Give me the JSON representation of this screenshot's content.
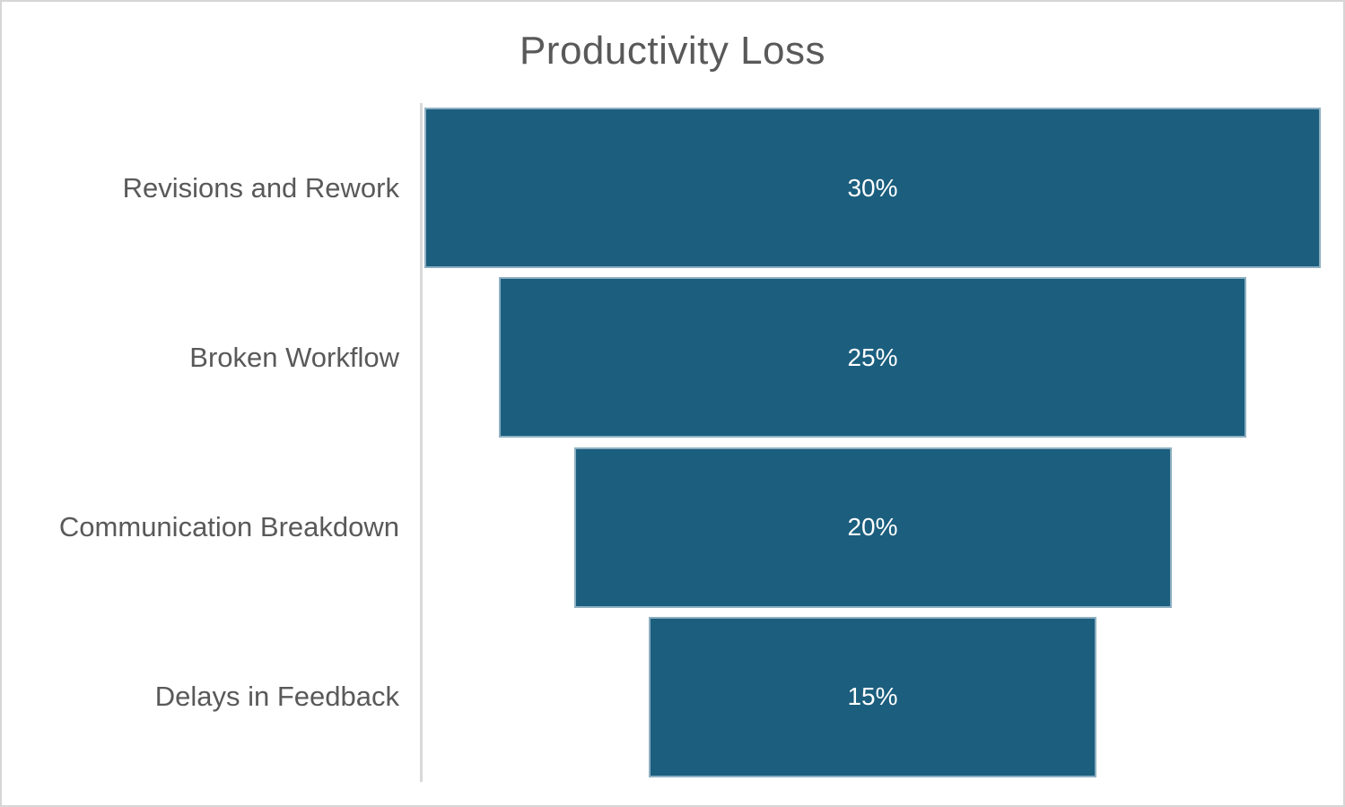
{
  "title": "Productivity Loss",
  "chart_data": {
    "type": "funnel",
    "title": "Productivity Loss",
    "categories": [
      "Revisions and Rework",
      "Broken Workflow",
      "Communication Breakdown",
      "Delays in Feedback"
    ],
    "values": [
      30,
      25,
      20,
      15
    ],
    "value_labels": [
      "30%",
      "25%",
      "20%",
      "15%"
    ],
    "max_value": 30,
    "orientation": "horizontal-centered",
    "legend": "none",
    "grid": "off",
    "colors": {
      "bar_fill": "#1B5E7E",
      "bar_border": "#8DAFC1",
      "value_label": "#FFFFFF",
      "category_label": "#595959",
      "title": "#595959",
      "axis_line": "#D9D9D9",
      "background": "#FFFFFF",
      "frame_border": "#D6D6D6"
    }
  }
}
